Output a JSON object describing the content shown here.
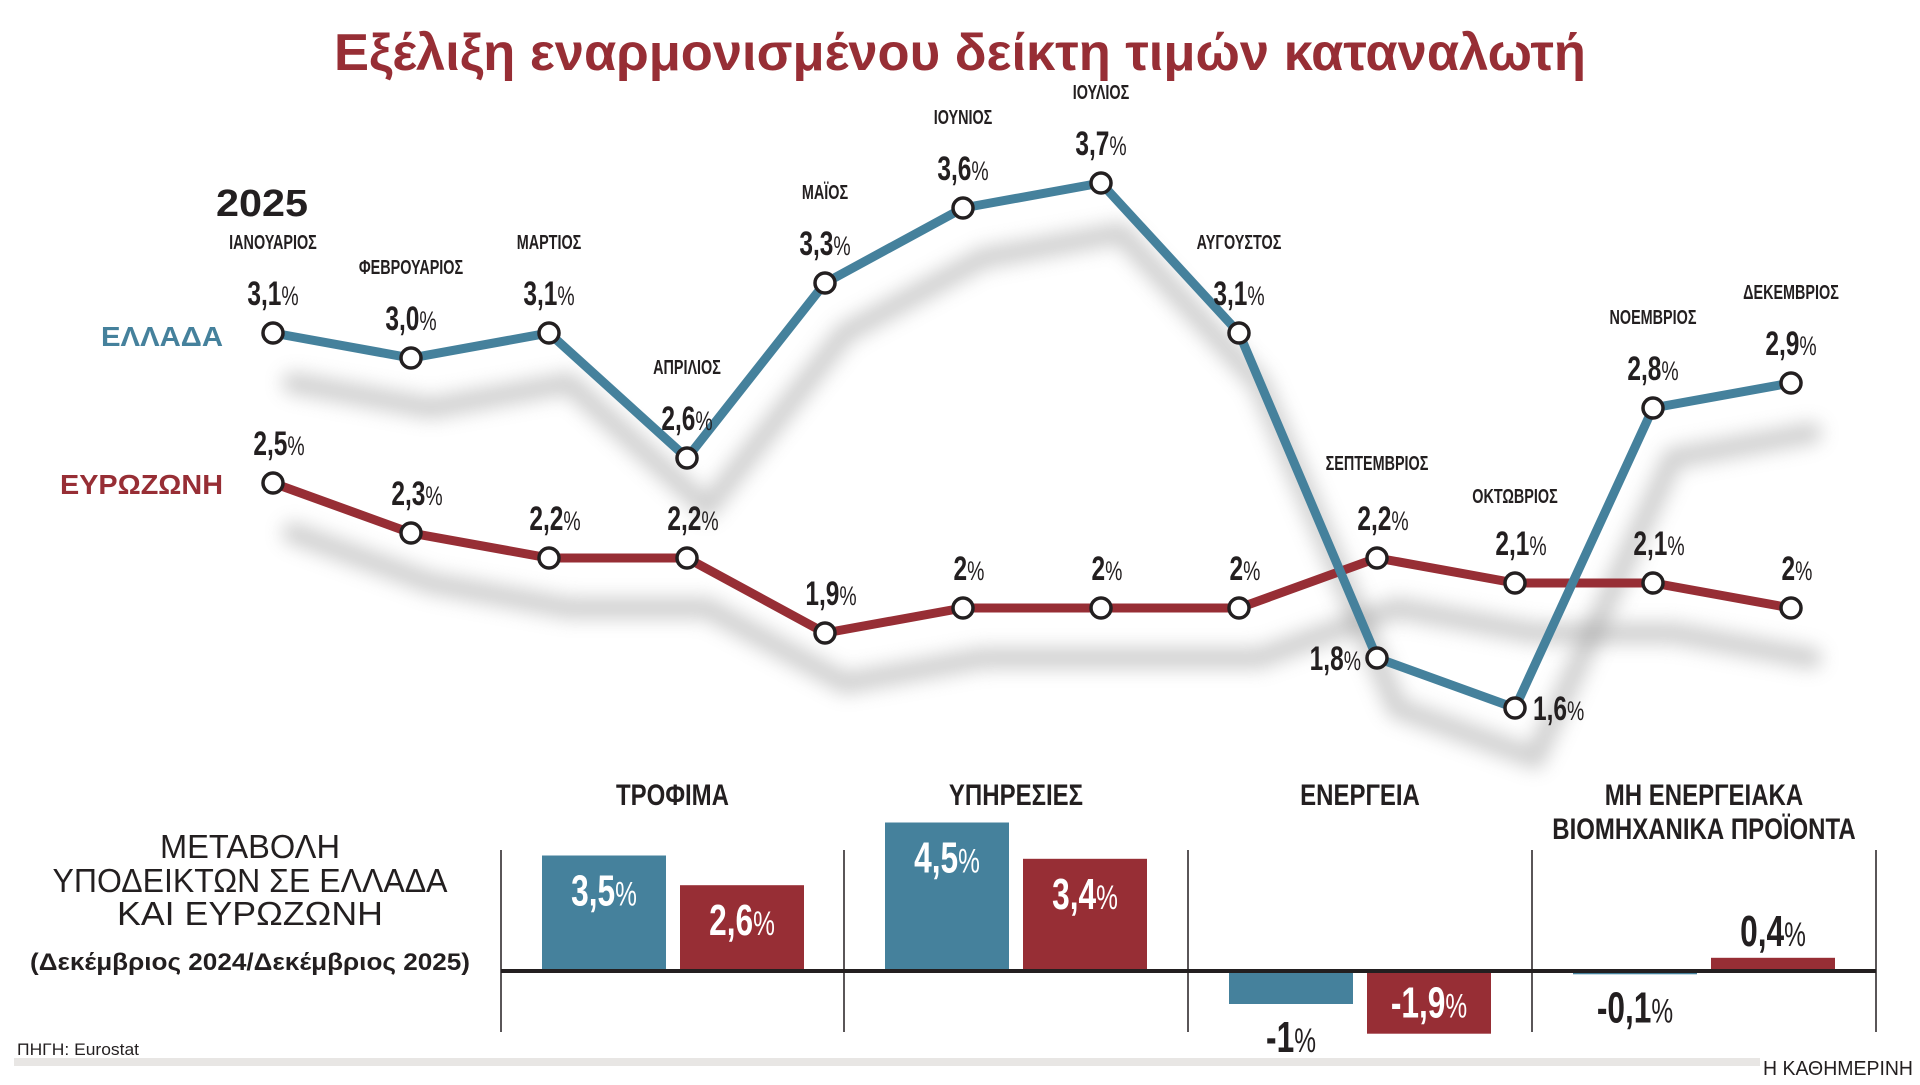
{
  "title": "Εξέλιξη εναρμονισμένου δείκτη τιμών καταναλωτή",
  "colors": {
    "title": "#972e35",
    "greece": "#45819c",
    "eurozone": "#972e35",
    "text": "#231f20",
    "footer_bar": "#e8e6e4"
  },
  "chart_data": [
    {
      "type": "line",
      "title": "Εξέλιξη εναρμονισμένου δείκτη τιμών καταναλωτή",
      "year_label": "2025",
      "categories": [
        "ΙΑΝΟΥΑΡΙΟΣ",
        "ΦΕΒΡΟΥΑΡΙΟΣ",
        "ΜΑΡΤΙΟΣ",
        "ΑΠΡΙΛΙΟΣ",
        "ΜΑΪΟΣ",
        "ΙΟΥΝΙΟΣ",
        "ΙΟΥΛΙΟΣ",
        "ΑΥΓΟΥΣΤΟΣ",
        "ΣΕΠΤΕΜΒΡΙΟΣ",
        "ΟΚΤΩΒΡΙΟΣ",
        "ΝΟΕΜΒΡΙΟΣ",
        "ΔΕΚΕΜΒΡΙΟΣ"
      ],
      "series": [
        {
          "name": "ΕΛΛΑΔΑ",
          "values": [
            3.1,
            3.0,
            3.1,
            2.6,
            3.3,
            3.6,
            3.7,
            3.1,
            1.8,
            1.6,
            2.8,
            2.9
          ],
          "labels": [
            "3,1",
            "3,0",
            "3,1",
            "2,6",
            "3,3",
            "3,6",
            "3,7",
            "3,1",
            "1,8",
            "1,6",
            "2,8",
            "2,9"
          ]
        },
        {
          "name": "ΕΥΡΩΖΩΝΗ",
          "values": [
            2.5,
            2.3,
            2.2,
            2.2,
            1.9,
            2.0,
            2.0,
            2.0,
            2.2,
            2.1,
            2.1,
            2.0
          ],
          "labels": [
            "2,5",
            "2,3",
            "2,2",
            "2,2",
            "1,9",
            "2",
            "2",
            "2",
            "2,2",
            "2,1",
            "2,1",
            "2"
          ]
        }
      ],
      "unit": "%",
      "grid": false
    },
    {
      "type": "bar",
      "title": "ΜΕΤΑΒΟΛΗ ΥΠΟΔΕΙΚΤΩΝ ΣΕ ΕΛΛΑΔΑ ΚΑΙ ΕΥΡΩΖΩΝΗ",
      "title_lines": [
        "ΜΕΤΑΒΟΛΗ",
        "ΥΠΟΔΕΙΚΤΩΝ ΣΕ ΕΛΛΑΔΑ",
        "ΚΑΙ ΕΥΡΩΖΩΝΗ"
      ],
      "subtitle": "(Δεκέμβριος 2024/Δεκέμβριος 2025)",
      "categories": [
        "ΤΡΟΦΙΜΑ",
        "ΥΠΗΡΕΣΙΕΣ",
        "ΕΝΕΡΓΕΙΑ",
        "ΜΗ ΕΝΕΡΓΕΙΑΚΑ ΒΙΟΜΗΧΑΝΙΚΑ ΠΡΟΪΟΝΤΑ"
      ],
      "category_lines": [
        [
          "ΤΡΟΦΙΜΑ"
        ],
        [
          "ΥΠΗΡΕΣΙΕΣ"
        ],
        [
          "ΕΝΕΡΓΕΙΑ"
        ],
        [
          "ΜΗ ΕΝΕΡΓΕΙΑΚΑ",
          "ΒΙΟΜΗΧΑΝΙΚΑ ΠΡΟΪΟΝΤΑ"
        ]
      ],
      "series": [
        {
          "name": "ΕΛΛΑΔΑ",
          "values": [
            3.5,
            4.5,
            -1.0,
            -0.1
          ],
          "labels": [
            "3,5",
            "4,5",
            "-1",
            "-0,1"
          ]
        },
        {
          "name": "ΕΥΡΩΖΩΝΗ",
          "values": [
            2.6,
            3.4,
            -1.9,
            0.4
          ],
          "labels": [
            "2,6",
            "3,4",
            "-1,9",
            "0,4"
          ]
        }
      ],
      "unit": "%",
      "grid": false
    }
  ],
  "footer": {
    "source": "ΠΗΓΗ: Eurostat",
    "publisher": "Η ΚΑΘΗΜΕΡΙΝΗ"
  }
}
